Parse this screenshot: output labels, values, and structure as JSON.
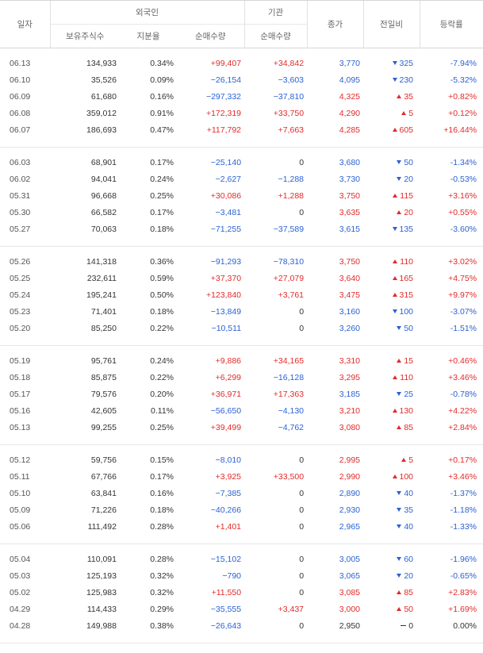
{
  "header": {
    "date": "일자",
    "foreign": "외국인",
    "institution": "기관",
    "close": "종가",
    "change": "전일비",
    "rate": "등락률",
    "holdings": "보유주식수",
    "ratio": "지분율",
    "foreign_net": "순매수량",
    "inst_net": "순매수량"
  },
  "groups": [
    [
      {
        "date": "06.13",
        "hold": "134,933",
        "ratio": "0.34%",
        "fnet": "+99,407",
        "inet": "+34,842",
        "close": "3,770",
        "dir": "down",
        "chg": "325",
        "rate": "-7.94%"
      },
      {
        "date": "06.10",
        "hold": "35,526",
        "ratio": "0.09%",
        "fnet": "−26,154",
        "inet": "−3,603",
        "close": "4,095",
        "dir": "down",
        "chg": "230",
        "rate": "-5.32%"
      },
      {
        "date": "06.09",
        "hold": "61,680",
        "ratio": "0.16%",
        "fnet": "−297,332",
        "inet": "−37,810",
        "close": "4,325",
        "dir": "up",
        "chg": "35",
        "rate": "+0.82%"
      },
      {
        "date": "06.08",
        "hold": "359,012",
        "ratio": "0.91%",
        "fnet": "+172,319",
        "inet": "+33,750",
        "close": "4,290",
        "dir": "up",
        "chg": "5",
        "rate": "+0.12%"
      },
      {
        "date": "06.07",
        "hold": "186,693",
        "ratio": "0.47%",
        "fnet": "+117,792",
        "inet": "+7,663",
        "close": "4,285",
        "dir": "up",
        "chg": "605",
        "rate": "+16.44%"
      }
    ],
    [
      {
        "date": "06.03",
        "hold": "68,901",
        "ratio": "0.17%",
        "fnet": "−25,140",
        "inet": "0",
        "close": "3,680",
        "dir": "down",
        "chg": "50",
        "rate": "-1.34%"
      },
      {
        "date": "06.02",
        "hold": "94,041",
        "ratio": "0.24%",
        "fnet": "−2,627",
        "inet": "−1,288",
        "close": "3,730",
        "dir": "down",
        "chg": "20",
        "rate": "-0.53%"
      },
      {
        "date": "05.31",
        "hold": "96,668",
        "ratio": "0.25%",
        "fnet": "+30,086",
        "inet": "+1,288",
        "close": "3,750",
        "dir": "up",
        "chg": "115",
        "rate": "+3.16%"
      },
      {
        "date": "05.30",
        "hold": "66,582",
        "ratio": "0.17%",
        "fnet": "−3,481",
        "inet": "0",
        "close": "3,635",
        "dir": "up",
        "chg": "20",
        "rate": "+0.55%"
      },
      {
        "date": "05.27",
        "hold": "70,063",
        "ratio": "0.18%",
        "fnet": "−71,255",
        "inet": "−37,589",
        "close": "3,615",
        "dir": "down",
        "chg": "135",
        "rate": "-3.60%"
      }
    ],
    [
      {
        "date": "05.26",
        "hold": "141,318",
        "ratio": "0.36%",
        "fnet": "−91,293",
        "inet": "−78,310",
        "close": "3,750",
        "dir": "up",
        "chg": "110",
        "rate": "+3.02%"
      },
      {
        "date": "05.25",
        "hold": "232,611",
        "ratio": "0.59%",
        "fnet": "+37,370",
        "inet": "+27,079",
        "close": "3,640",
        "dir": "up",
        "chg": "165",
        "rate": "+4.75%"
      },
      {
        "date": "05.24",
        "hold": "195,241",
        "ratio": "0.50%",
        "fnet": "+123,840",
        "inet": "+3,761",
        "close": "3,475",
        "dir": "up",
        "chg": "315",
        "rate": "+9.97%"
      },
      {
        "date": "05.23",
        "hold": "71,401",
        "ratio": "0.18%",
        "fnet": "−13,849",
        "inet": "0",
        "close": "3,160",
        "dir": "down",
        "chg": "100",
        "rate": "-3.07%"
      },
      {
        "date": "05.20",
        "hold": "85,250",
        "ratio": "0.22%",
        "fnet": "−10,511",
        "inet": "0",
        "close": "3,260",
        "dir": "down",
        "chg": "50",
        "rate": "-1.51%"
      }
    ],
    [
      {
        "date": "05.19",
        "hold": "95,761",
        "ratio": "0.24%",
        "fnet": "+9,886",
        "inet": "+34,165",
        "close": "3,310",
        "dir": "up",
        "chg": "15",
        "rate": "+0.46%"
      },
      {
        "date": "05.18",
        "hold": "85,875",
        "ratio": "0.22%",
        "fnet": "+6,299",
        "inet": "−16,128",
        "close": "3,295",
        "dir": "up",
        "chg": "110",
        "rate": "+3.46%"
      },
      {
        "date": "05.17",
        "hold": "79,576",
        "ratio": "0.20%",
        "fnet": "+36,971",
        "inet": "+17,363",
        "close": "3,185",
        "dir": "down",
        "chg": "25",
        "rate": "-0.78%"
      },
      {
        "date": "05.16",
        "hold": "42,605",
        "ratio": "0.11%",
        "fnet": "−56,650",
        "inet": "−4,130",
        "close": "3,210",
        "dir": "up",
        "chg": "130",
        "rate": "+4.22%"
      },
      {
        "date": "05.13",
        "hold": "99,255",
        "ratio": "0.25%",
        "fnet": "+39,499",
        "inet": "−4,762",
        "close": "3,080",
        "dir": "up",
        "chg": "85",
        "rate": "+2.84%"
      }
    ],
    [
      {
        "date": "05.12",
        "hold": "59,756",
        "ratio": "0.15%",
        "fnet": "−8,010",
        "inet": "0",
        "close": "2,995",
        "dir": "up",
        "chg": "5",
        "rate": "+0.17%"
      },
      {
        "date": "05.11",
        "hold": "67,766",
        "ratio": "0.17%",
        "fnet": "+3,925",
        "inet": "+33,500",
        "close": "2,990",
        "dir": "up",
        "chg": "100",
        "rate": "+3.46%"
      },
      {
        "date": "05.10",
        "hold": "63,841",
        "ratio": "0.16%",
        "fnet": "−7,385",
        "inet": "0",
        "close": "2,890",
        "dir": "down",
        "chg": "40",
        "rate": "-1.37%"
      },
      {
        "date": "05.09",
        "hold": "71,226",
        "ratio": "0.18%",
        "fnet": "−40,266",
        "inet": "0",
        "close": "2,930",
        "dir": "down",
        "chg": "35",
        "rate": "-1.18%"
      },
      {
        "date": "05.06",
        "hold": "111,492",
        "ratio": "0.28%",
        "fnet": "+1,401",
        "inet": "0",
        "close": "2,965",
        "dir": "down",
        "chg": "40",
        "rate": "-1.33%"
      }
    ],
    [
      {
        "date": "05.04",
        "hold": "110,091",
        "ratio": "0.28%",
        "fnet": "−15,102",
        "inet": "0",
        "close": "3,005",
        "dir": "down",
        "chg": "60",
        "rate": "-1.96%"
      },
      {
        "date": "05.03",
        "hold": "125,193",
        "ratio": "0.32%",
        "fnet": "−790",
        "inet": "0",
        "close": "3,065",
        "dir": "down",
        "chg": "20",
        "rate": "-0.65%"
      },
      {
        "date": "05.02",
        "hold": "125,983",
        "ratio": "0.32%",
        "fnet": "+11,550",
        "inet": "0",
        "close": "3,085",
        "dir": "up",
        "chg": "85",
        "rate": "+2.83%"
      },
      {
        "date": "04.29",
        "hold": "114,433",
        "ratio": "0.29%",
        "fnet": "−35,555",
        "inet": "+3,437",
        "close": "3,000",
        "dir": "up",
        "chg": "50",
        "rate": "+1.69%"
      },
      {
        "date": "04.28",
        "hold": "149,988",
        "ratio": "0.38%",
        "fnet": "−26,643",
        "inet": "0",
        "close": "2,950",
        "dir": "flat",
        "chg": "0",
        "rate": "0.00%"
      }
    ]
  ],
  "colors": {
    "up": "#e22a2a",
    "down": "#2a62d3",
    "neutral": "#333333"
  }
}
